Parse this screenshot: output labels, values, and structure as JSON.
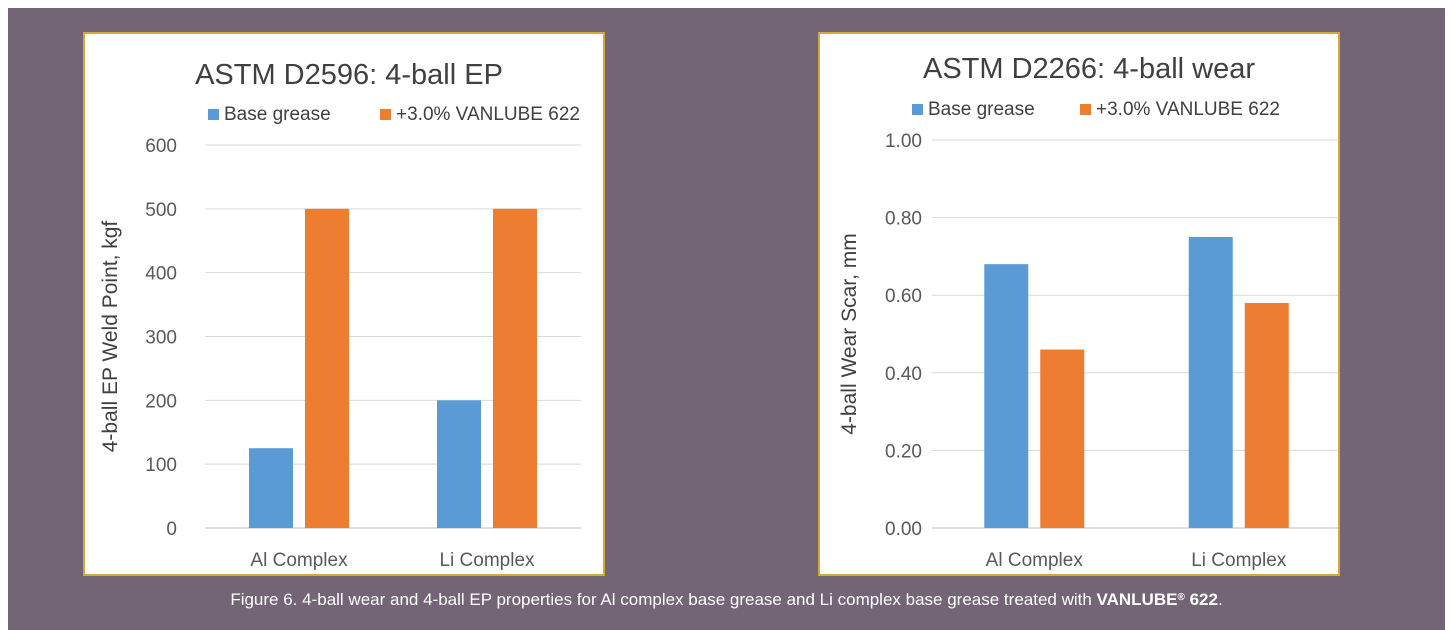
{
  "caption": {
    "text": "Figure 6. 4-ball wear and 4-ball EP properties for Al complex base grease and Li complex base grease treated with ",
    "bold": "VANLUBE",
    "sup": "®",
    "bold_tail": " 622",
    "end": "."
  },
  "colors": {
    "base": "#5b9bd5",
    "treated": "#ed7d31",
    "frame": "#d4a93a",
    "background": "#736476"
  },
  "chart_data": [
    {
      "type": "bar",
      "title": "ASTM D2596:  4-ball EP",
      "xlabel": "",
      "ylabel": "4-ball EP Weld Point, kgf",
      "categories": [
        "Al Complex",
        "Li Complex"
      ],
      "series": [
        {
          "name": "Base grease",
          "values": [
            125,
            200
          ]
        },
        {
          "name": "+3.0% VANLUBE 622",
          "values": [
            500,
            500
          ]
        }
      ],
      "ylim": [
        0,
        600
      ],
      "yticks": [
        "0",
        "100",
        "200",
        "300",
        "400",
        "500",
        "600"
      ],
      "grid": true,
      "legend": "top"
    },
    {
      "type": "bar",
      "title": "ASTM D2266:  4-ball wear",
      "xlabel": "",
      "ylabel": "4-ball Wear Scar, mm",
      "categories": [
        "Al Complex",
        "Li Complex"
      ],
      "series": [
        {
          "name": "Base grease",
          "values": [
            0.68,
            0.75
          ]
        },
        {
          "name": "+3.0% VANLUBE 622",
          "values": [
            0.46,
            0.58
          ]
        }
      ],
      "ylim": [
        0,
        1
      ],
      "yticks": [
        "0.00",
        "0.20",
        "0.40",
        "0.60",
        "0.80",
        "1.00"
      ],
      "grid": true,
      "legend": "top"
    }
  ]
}
